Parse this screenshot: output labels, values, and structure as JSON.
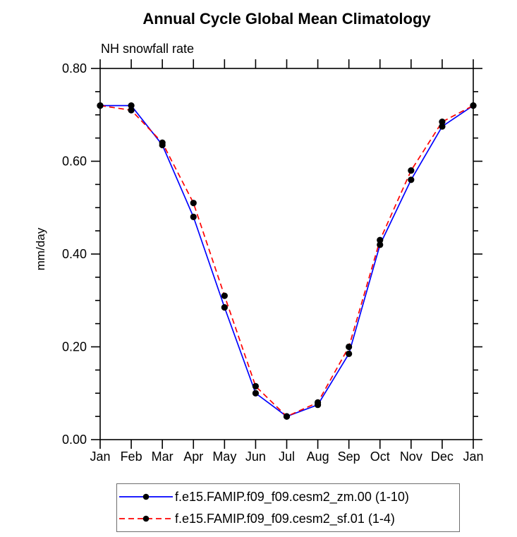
{
  "header": {
    "title": "Annual Cycle Global Mean Climatology",
    "subtitle": "NH snowfall rate"
  },
  "chart_data": {
    "type": "line",
    "title": "Annual Cycle Global Mean Climatology",
    "subtitle": "NH snowfall rate",
    "xlabel": "",
    "ylabel": "mm/day",
    "xticklabels": [
      "Jan",
      "Feb",
      "Mar",
      "Apr",
      "May",
      "Jun",
      "Jul",
      "Aug",
      "Sep",
      "Oct",
      "Nov",
      "Dec",
      "Jan"
    ],
    "ylim": [
      0.0,
      0.8
    ],
    "ytick_step": 0.2,
    "yminor_step": 0.05,
    "grid": false,
    "legend_position": "bottom",
    "marker": "filled-black-circle",
    "series": [
      {
        "name": "f.e15.FAMIP.f09_f09.cesm2_zm.00 (1-10)",
        "color": "#0000ff",
        "style": "solid",
        "values": [
          0.72,
          0.72,
          0.635,
          0.48,
          0.285,
          0.1,
          0.05,
          0.075,
          0.185,
          0.42,
          0.56,
          0.675,
          0.72
        ]
      },
      {
        "name": "f.e15.FAMIP.f09_f09.cesm2_sf.01 (1-4)",
        "color": "#ff0000",
        "style": "dashed",
        "values": [
          0.72,
          0.71,
          0.64,
          0.51,
          0.31,
          0.115,
          0.05,
          0.08,
          0.2,
          0.43,
          0.58,
          0.685,
          0.72
        ]
      }
    ]
  },
  "colors": {
    "axis": "#000000",
    "marker": "#000000",
    "background": "#ffffff",
    "series1": "#0000ff",
    "series2": "#ff0000"
  }
}
